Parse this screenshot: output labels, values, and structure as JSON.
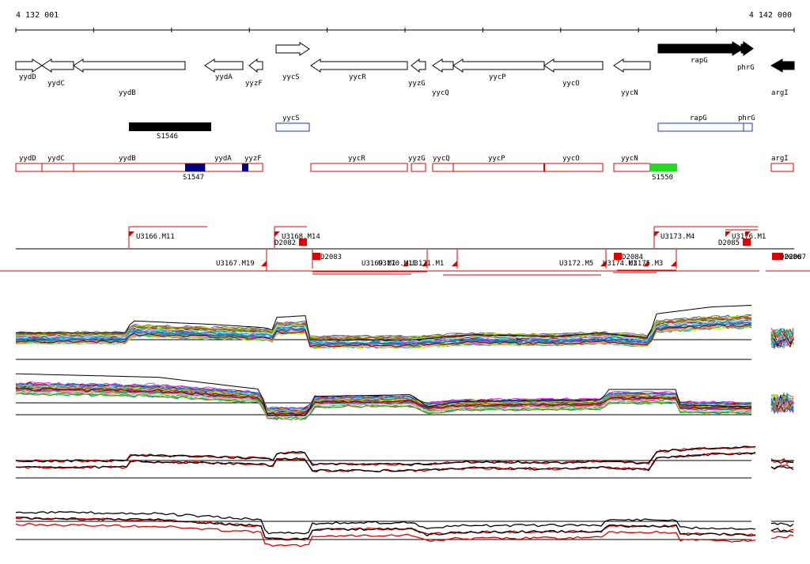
{
  "ruler": {
    "start_label": "4 132 001",
    "end_label": "4 142 000"
  },
  "genes": [
    {
      "name": "yydD",
      "strand": "+",
      "filled": false
    },
    {
      "name": "yydC",
      "strand": "-",
      "filled": false
    },
    {
      "name": "yydB",
      "strand": "-",
      "filled": false
    },
    {
      "name": "yydA",
      "strand": "-",
      "filled": false
    },
    {
      "name": "yyzF",
      "strand": "-",
      "filled": false
    },
    {
      "name": "yycS",
      "strand": "+",
      "filled": false
    },
    {
      "name": "yycR",
      "strand": "-",
      "filled": false
    },
    {
      "name": "yyzG",
      "strand": "-",
      "filled": false
    },
    {
      "name": "yycQ",
      "strand": "-",
      "filled": false
    },
    {
      "name": "yycP",
      "strand": "-",
      "filled": false
    },
    {
      "name": "yycO",
      "strand": "-",
      "filled": false
    },
    {
      "name": "yycN",
      "strand": "-",
      "filled": false
    },
    {
      "name": "rapG",
      "strand": "+",
      "filled": true
    },
    {
      "name": "phrG",
      "strand": "+",
      "filled": true
    },
    {
      "name": "argI",
      "strand": "-",
      "filled": true
    }
  ],
  "segments_top": [
    {
      "name": "S1546",
      "color": "#000000"
    },
    {
      "name": "yycS",
      "color": "#2233cc"
    },
    {
      "name": "rapG",
      "color": "#2233cc"
    },
    {
      "name": "phrG",
      "color": "#2233cc"
    }
  ],
  "segments_bottom": [
    {
      "name": "yydD"
    },
    {
      "name": "yydC"
    },
    {
      "name": "yydB"
    },
    {
      "name": "yydA"
    },
    {
      "name": "yyzF"
    },
    {
      "name": "yycR"
    },
    {
      "name": "yyzG"
    },
    {
      "name": "yycQ"
    },
    {
      "name": "yycP"
    },
    {
      "name": "yycO"
    },
    {
      "name": "yycN"
    },
    {
      "name": "argI"
    }
  ],
  "segment_marks": [
    {
      "name": "S1547",
      "color": "#000080"
    },
    {
      "name": "S1550",
      "color": "#22dd22"
    }
  ],
  "transcripts_upper": [
    "U3166.M11",
    "U3168.M14",
    "D2082",
    "U3173.M4",
    "U3176.M1",
    "D2085"
  ],
  "transcripts_lower": [
    "U3167.M19",
    "D2083",
    "U3169.M1",
    "U3170.M11",
    "U3171.M1",
    "U3172.M5",
    "D2084",
    "U3174.M1",
    "U3175.M3",
    "D2086",
    "D2087"
  ],
  "colors": {
    "annotation_red": "#e00000",
    "dark_blue": "#000080",
    "green": "#22dd22",
    "blue": "#2233cc"
  },
  "tracks": [
    {
      "name": "expression-profile-track-1",
      "kind": "multicolor"
    },
    {
      "name": "expression-profile-track-2",
      "kind": "multicolor"
    },
    {
      "name": "strand-signal-track-1",
      "kind": "red-black"
    },
    {
      "name": "strand-signal-track-2",
      "kind": "red-black"
    }
  ]
}
